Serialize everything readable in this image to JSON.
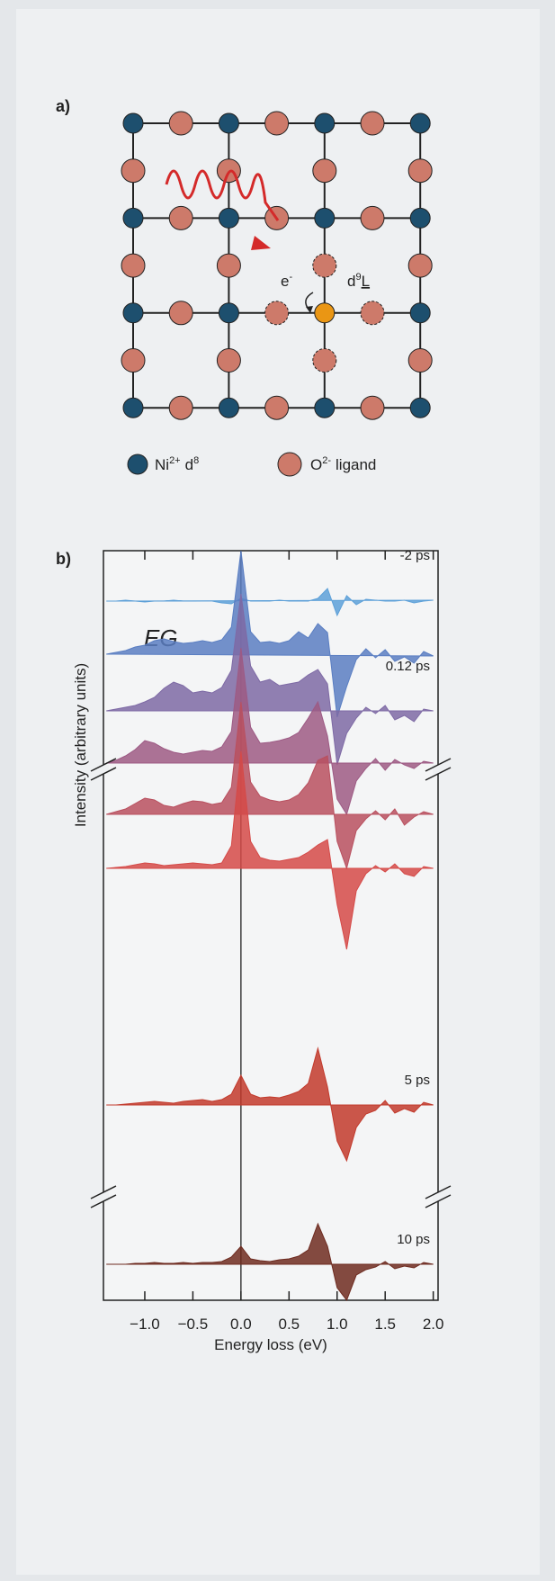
{
  "panel_a": {
    "label": "a)",
    "annotation_electron": {
      "text": "e",
      "sup": "-"
    },
    "annotation_state": {
      "text": "d",
      "sup": "9",
      "underlined": "L"
    },
    "legend": [
      {
        "name": "Ni",
        "sup": "2+",
        "suffix": "d",
        "suffix_sup": "8"
      },
      {
        "name": "O",
        "sup": "2-",
        "suffix": "ligand"
      }
    ]
  },
  "chart_data": {
    "type": "area",
    "panel_label": "b)",
    "annotation": "EG",
    "xlabel": "Energy loss (eV)",
    "ylabel": "Intensity (arbitrary units)",
    "xlim": [
      -1.43,
      2.05
    ],
    "xticks": [
      {
        "value": -1.0,
        "label": "−1.0"
      },
      {
        "value": -0.5,
        "label": "−0.5"
      },
      {
        "value": 0.0,
        "label": "0.0"
      },
      {
        "value": 0.5,
        "label": "0.5"
      },
      {
        "value": 1.0,
        "label": "1.0"
      },
      {
        "value": 1.5,
        "label": "1.5"
      },
      {
        "value": 2.0,
        "label": "2.0"
      }
    ],
    "vline": 0,
    "x": [
      -1.4,
      -1.3,
      -1.2,
      -1.1,
      -1.0,
      -0.9,
      -0.8,
      -0.7,
      -0.6,
      -0.5,
      -0.4,
      -0.3,
      -0.2,
      -0.1,
      0.0,
      0.1,
      0.2,
      0.3,
      0.4,
      0.5,
      0.6,
      0.7,
      0.8,
      0.9,
      1.0,
      1.1,
      1.2,
      1.3,
      1.4,
      1.5,
      1.6,
      1.7,
      1.8,
      1.9,
      2.0
    ],
    "series": [
      {
        "name": "-2 ps",
        "color": "#5da0d8",
        "values": [
          0,
          0,
          0.1,
          0,
          -0.1,
          0,
          0,
          0.1,
          0,
          0,
          0,
          0,
          -0.2,
          -0.3,
          0.3,
          0,
          0,
          0,
          0.1,
          0,
          0,
          0,
          0.3,
          1.4,
          -1.6,
          0.6,
          -0.4,
          0.2,
          0.1,
          0,
          0,
          0.1,
          -0.2,
          0,
          0.1
        ]
      },
      {
        "color": "#5a7ec2",
        "values": [
          0,
          0.2,
          0.4,
          0.8,
          1.0,
          1.5,
          1.7,
          1.4,
          1.2,
          1.3,
          1.5,
          1.3,
          1.6,
          3,
          11.5,
          2.5,
          1.3,
          1.4,
          1.2,
          1.5,
          2.5,
          1.8,
          3.4,
          2.4,
          -7,
          -3.6,
          -0.6,
          0.6,
          -0.4,
          0.5,
          -0.8,
          -0.3,
          -1,
          0.3,
          -0.2
        ]
      },
      {
        "name": "0.12 ps",
        "color": "#7e6aa5",
        "values": [
          0,
          0.2,
          0.4,
          0.6,
          1.0,
          1.5,
          2.5,
          3.2,
          2.8,
          2.0,
          2.2,
          2.0,
          2.6,
          4.5,
          13,
          5,
          3.2,
          3.5,
          2.8,
          3,
          3.2,
          4,
          4.6,
          3,
          -6,
          -2.5,
          -0.8,
          0.4,
          -0.3,
          0.6,
          -1,
          -0.5,
          -1.2,
          0.2,
          0
        ]
      },
      {
        "color": "#9d5a84",
        "values": [
          0,
          0.3,
          0.8,
          1.5,
          2.5,
          2.2,
          1.6,
          1.2,
          1.0,
          1.2,
          1.4,
          1.3,
          1.8,
          3.5,
          12.8,
          4,
          2.2,
          2.3,
          2.5,
          2.8,
          3.4,
          5,
          6.8,
          3,
          -4,
          -5.7,
          -2,
          -0.6,
          0.5,
          -0.8,
          0.4,
          -0.2,
          -0.6,
          0.2,
          0
        ]
      },
      {
        "color": "#b9505f",
        "values": [
          0,
          0.3,
          0.6,
          1.2,
          1.8,
          1.6,
          1.0,
          0.8,
          1.2,
          1.5,
          1.4,
          1.1,
          1.3,
          3,
          12.5,
          3.6,
          2,
          1.6,
          1.4,
          1.6,
          2.2,
          3.5,
          6,
          6.5,
          -3,
          -6,
          -1.8,
          -0.5,
          0.4,
          -0.6,
          0.6,
          -1.2,
          -0.3,
          0.3,
          0
        ]
      },
      {
        "color": "#d54a48",
        "values": [
          0,
          0.1,
          0.2,
          0.4,
          0.6,
          0.5,
          0.3,
          0.4,
          0.5,
          0.6,
          0.5,
          0.4,
          0.6,
          2.5,
          13,
          3,
          1.2,
          0.9,
          0.8,
          1.0,
          1.2,
          1.8,
          2.6,
          3.2,
          -4,
          -9,
          -2.5,
          -0.6,
          0.3,
          -0.4,
          0.5,
          -0.6,
          -0.9,
          0.2,
          0
        ]
      },
      {
        "name": "5 ps",
        "color": "#c23a2c",
        "values": [
          0,
          0,
          0.1,
          0.2,
          0.3,
          0.4,
          0.3,
          0.2,
          0.4,
          0.5,
          0.6,
          0.4,
          0.6,
          1.2,
          3.3,
          1.2,
          0.8,
          0.9,
          0.8,
          1.1,
          1.5,
          2.4,
          6.3,
          2,
          -4,
          -6.2,
          -2.5,
          -1,
          -0.6,
          0.5,
          -0.9,
          -0.4,
          -0.8,
          0.3,
          0
        ]
      },
      {
        "name": "10 ps",
        "color": "#6e2b20",
        "values": [
          0,
          0,
          0,
          0.1,
          0.1,
          0.2,
          0.1,
          0.1,
          0.2,
          0.1,
          0.2,
          0.2,
          0.3,
          0.8,
          2,
          0.6,
          0.4,
          0.3,
          0.5,
          0.6,
          0.9,
          1.6,
          4.5,
          2,
          -2.6,
          -4,
          -1.2,
          -0.6,
          -0.3,
          0.3,
          -0.5,
          -0.2,
          -0.4,
          0.2,
          0
        ]
      }
    ]
  }
}
